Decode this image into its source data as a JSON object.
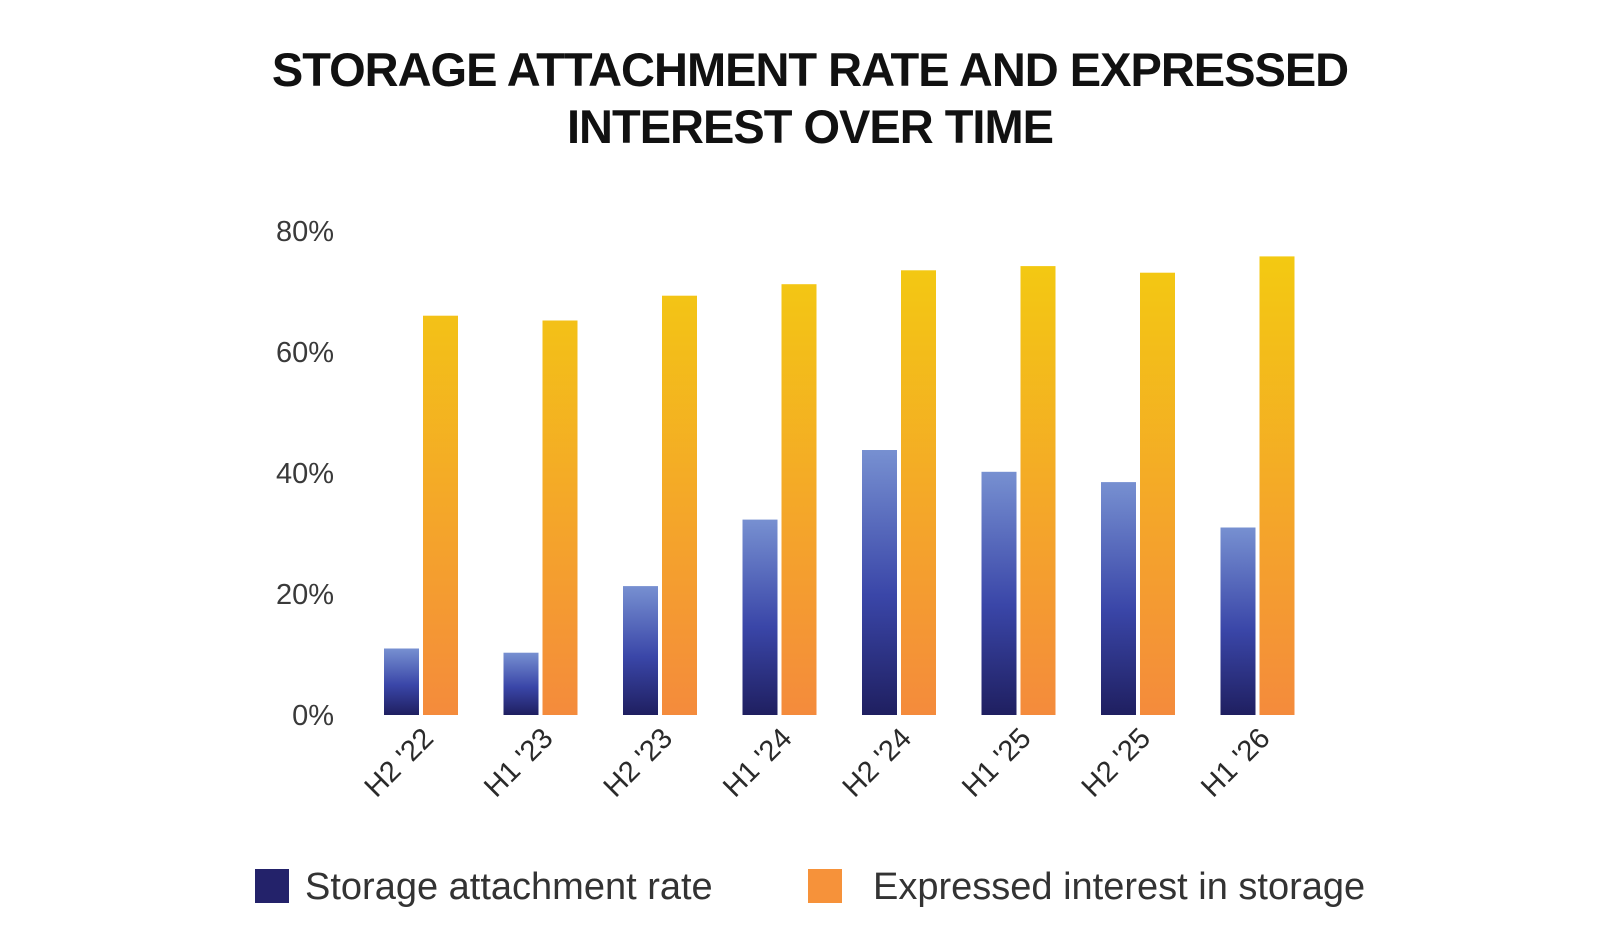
{
  "chart_data": {
    "type": "bar",
    "title_lines": [
      "STORAGE ATTACHMENT RATE AND EXPRESSED",
      "INTEREST OVER TIME"
    ],
    "categories": [
      "H2 '22",
      "H1 '23",
      "H2 '23",
      "H1 '24",
      "H2 '24",
      "H1 '25",
      "H2 '25",
      "H1 '26"
    ],
    "series": [
      {
        "name": "Storage attachment rate",
        "values": [
          11,
          10.3,
          21.3,
          32.3,
          43.8,
          40.2,
          38.5,
          31
        ]
      },
      {
        "name": "Expressed interest in storage",
        "values": [
          66,
          65.2,
          69.3,
          71.2,
          73.5,
          74.2,
          73.1,
          75.8
        ]
      }
    ],
    "ylim": [
      0,
      80
    ],
    "yticks": [
      0,
      20,
      40,
      60,
      80
    ],
    "ytick_suffix": "%",
    "legend": "bottom",
    "grid": false,
    "colors": {
      "attach_top": "#7790d1",
      "attach_mid": "#3a46a8",
      "attach_bottom": "#1f1f60",
      "interest_top": "#f3cd0f",
      "interest_bottom": "#f48b3c",
      "legend_attach": "#23226a",
      "legend_interest": "#f6923a"
    }
  }
}
